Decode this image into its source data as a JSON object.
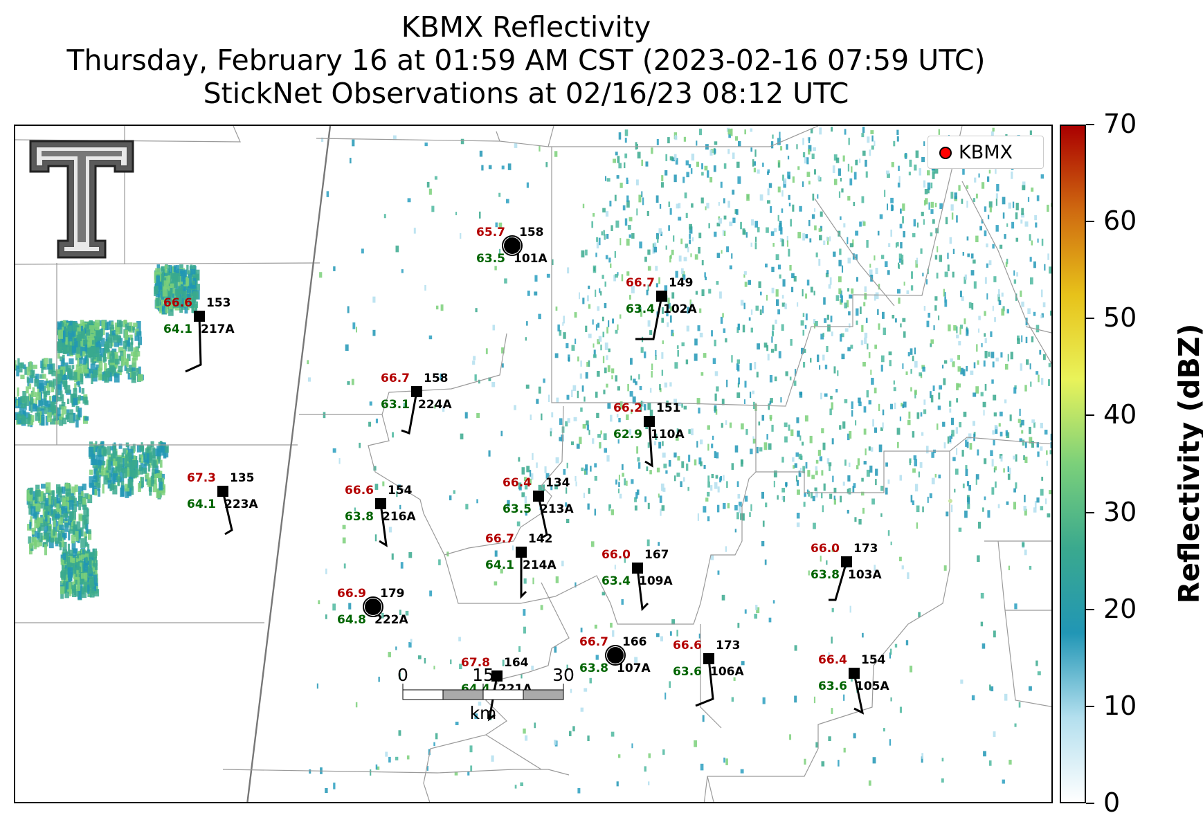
{
  "title": {
    "line1": "KBMX Reflectivity",
    "line2": "Thursday, February 16 at 01:59 AM CST (2023-02-16 07:59 UTC)",
    "line3": "StickNet Observations at 02/16/23 08:12 UTC"
  },
  "legend": {
    "label": "KBMX",
    "marker_color": "#ff0000"
  },
  "colorbar": {
    "label": "Reflectivity (dBZ)",
    "min": 0,
    "max": 70,
    "ticks": [
      "0",
      "10",
      "20",
      "30",
      "40",
      "50",
      "60",
      "70"
    ],
    "colors": [
      "#ffffff",
      "#b3dfee",
      "#2196b5",
      "#3aa98e",
      "#7bd07a",
      "#e9f35a",
      "#e7c21a",
      "#cf6a10",
      "#aa0000"
    ]
  },
  "scale_bar": {
    "labels": [
      "0",
      "15",
      "30"
    ],
    "unit": "km"
  },
  "stations": [
    {
      "id": "217A",
      "temp": "66.6",
      "dew": "64.1",
      "k": "153"
    },
    {
      "id": "101A",
      "temp": "65.7",
      "dew": "63.5",
      "k": "158"
    },
    {
      "id": "102A",
      "temp": "66.7",
      "dew": "63.4",
      "k": "149"
    },
    {
      "id": "224A",
      "temp": "66.7",
      "dew": "63.1",
      "k": "158"
    },
    {
      "id": "110A",
      "temp": "66.2",
      "dew": "62.9",
      "k": "151"
    },
    {
      "id": "223A",
      "temp": "67.3",
      "dew": "64.1",
      "k": "135"
    },
    {
      "id": "216A",
      "temp": "66.6",
      "dew": "63.8",
      "k": "154"
    },
    {
      "id": "213A",
      "temp": "66.4",
      "dew": "63.5",
      "k": "134"
    },
    {
      "id": "214A",
      "temp": "66.7",
      "dew": "64.1",
      "k": "142"
    },
    {
      "id": "109A",
      "temp": "66.0",
      "dew": "63.4",
      "k": "167"
    },
    {
      "id": "103A",
      "temp": "66.0",
      "dew": "63.8",
      "k": "173"
    },
    {
      "id": "222A",
      "temp": "66.9",
      "dew": "64.8",
      "k": "179"
    },
    {
      "id": "107A",
      "temp": "66.7",
      "dew": "63.8",
      "k": "166"
    },
    {
      "id": "106A",
      "temp": "66.6",
      "dew": "63.6",
      "k": "173"
    },
    {
      "id": "221A",
      "temp": "67.8",
      "dew": "64.4",
      "k": "164"
    },
    {
      "id": "105A",
      "temp": "66.4",
      "dew": "63.6",
      "k": "154"
    }
  ]
}
